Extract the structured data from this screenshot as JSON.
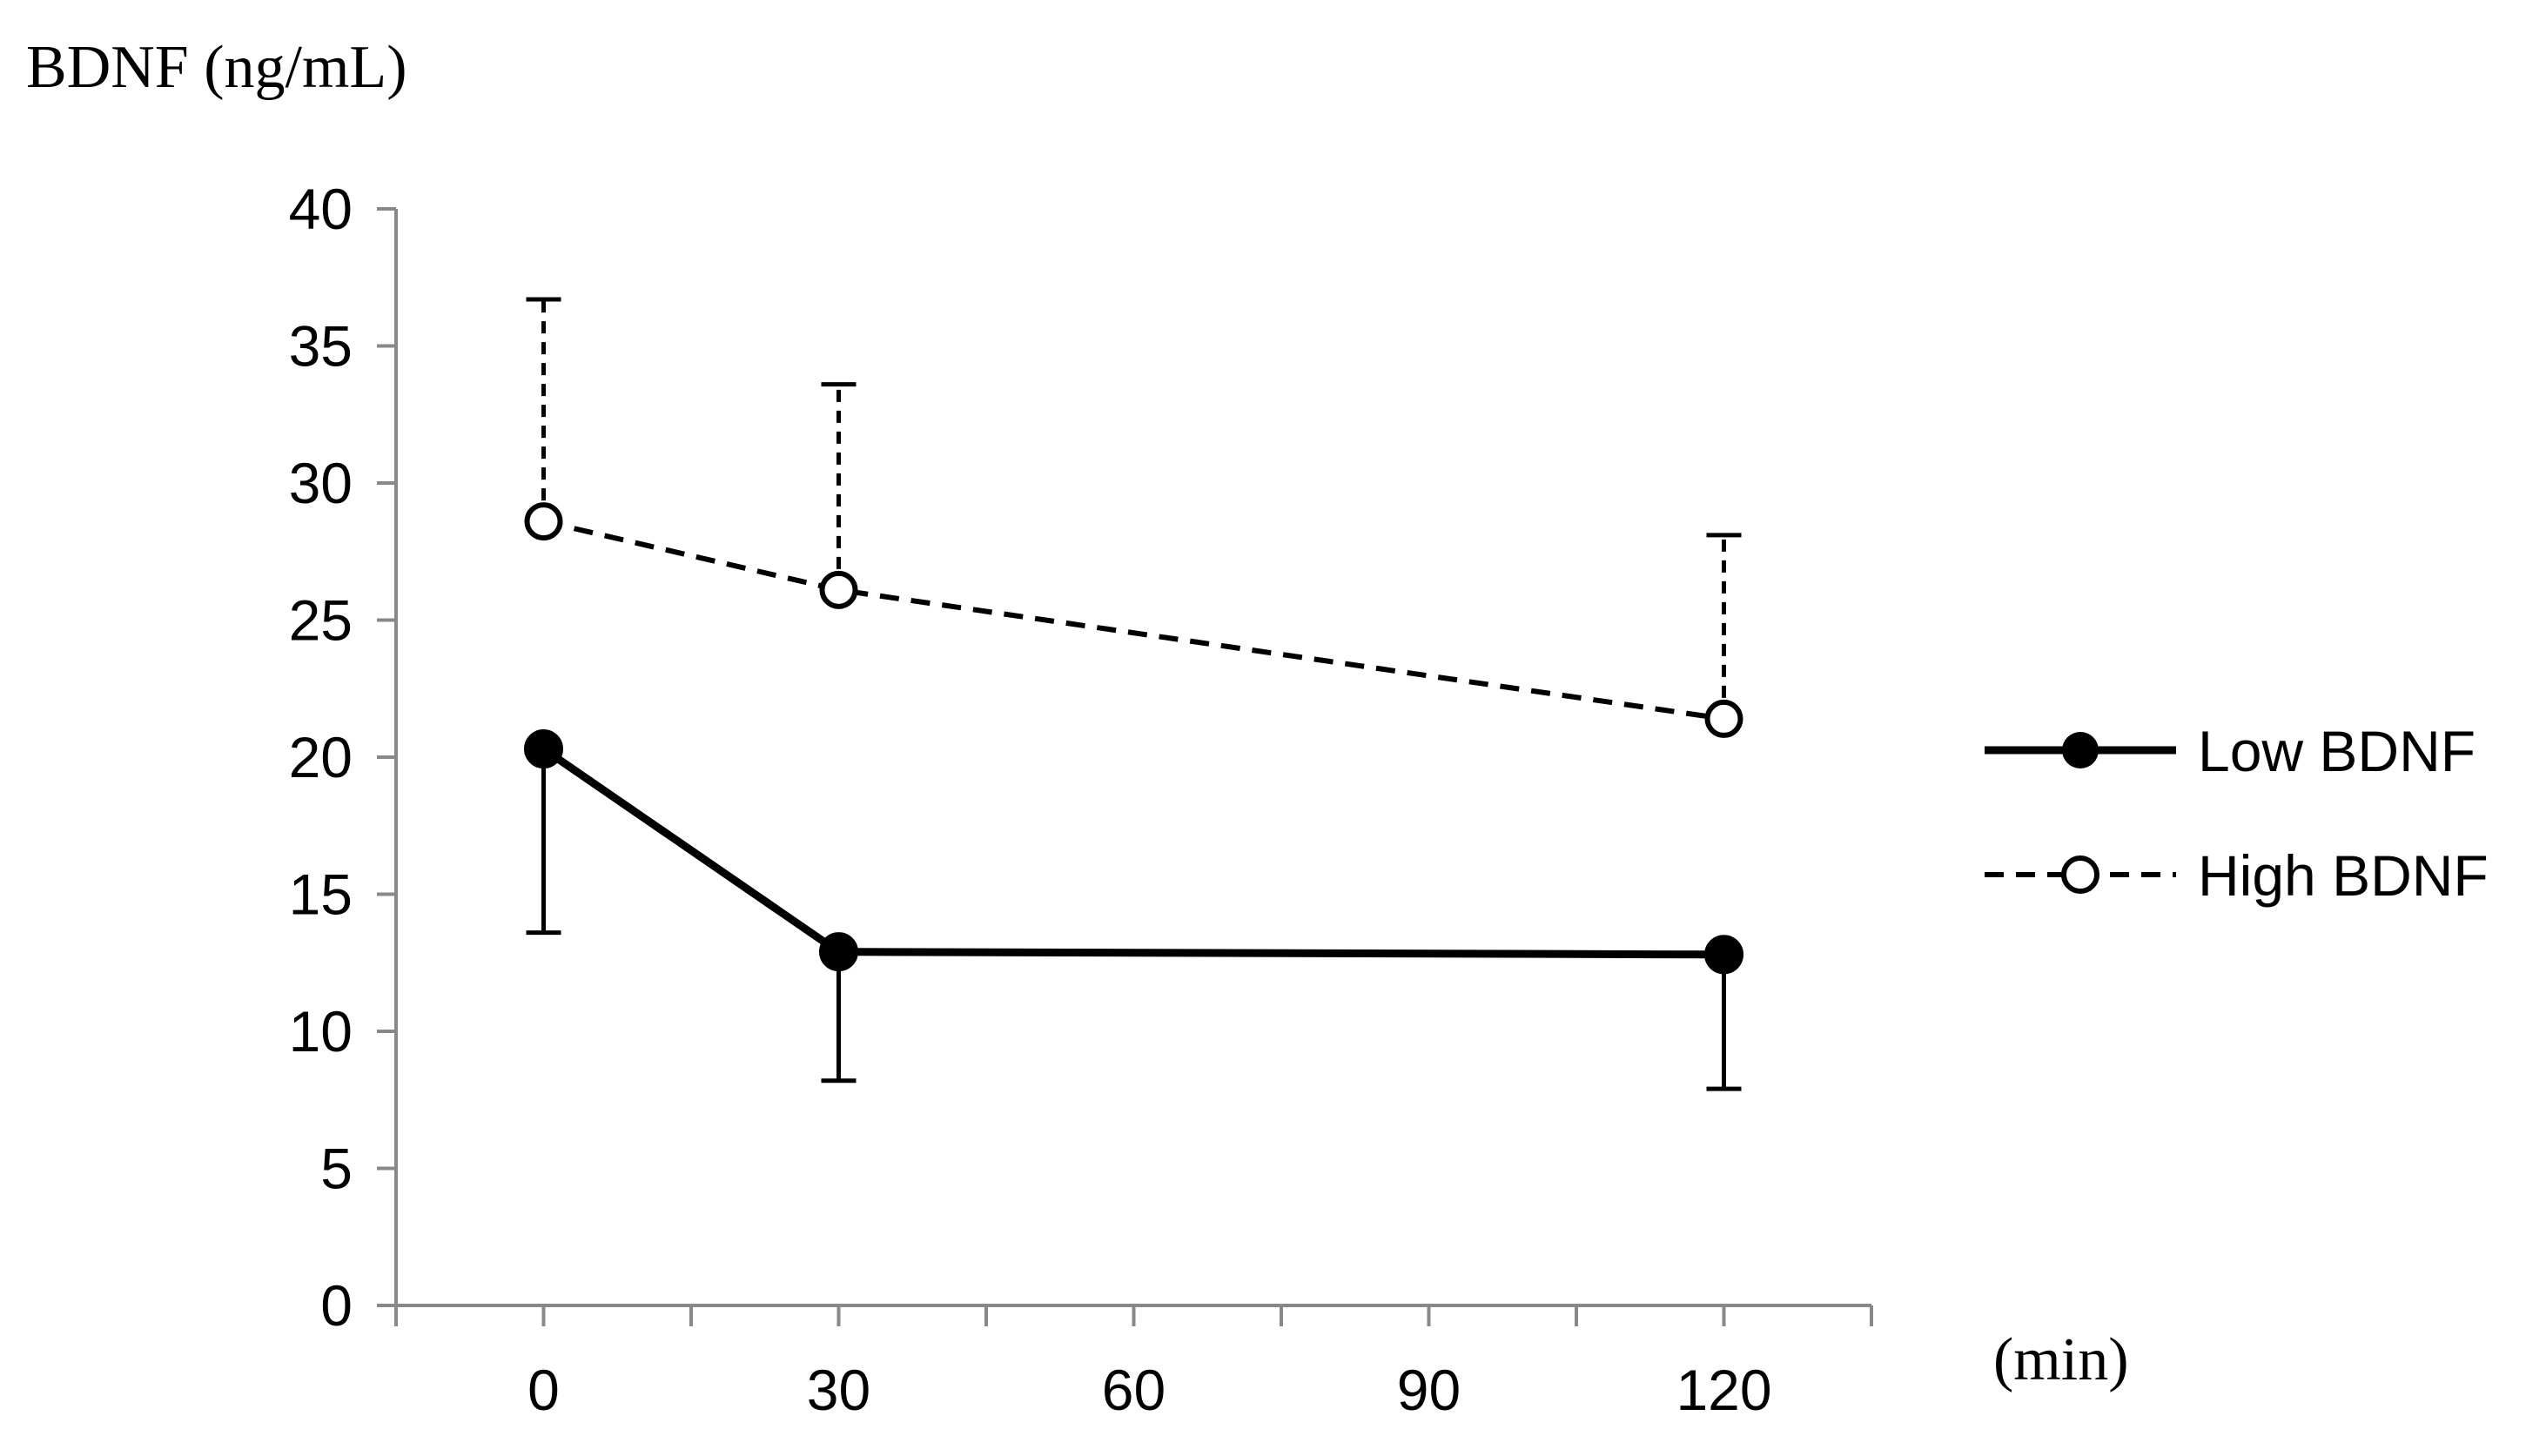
{
  "chart_data": {
    "type": "line",
    "title": "",
    "ylabel": "BDNF (ng/mL)",
    "xlabel": "(min)",
    "x": [
      0,
      30,
      120
    ],
    "xlim": [
      -15,
      135
    ],
    "xticks": [
      0,
      30,
      60,
      90,
      120
    ],
    "ylim": [
      0,
      40
    ],
    "yticks": [
      0,
      5,
      10,
      15,
      20,
      25,
      30,
      35,
      40
    ],
    "grid": false,
    "legend_position": "right",
    "series": [
      {
        "name": "Low BDNF",
        "values": [
          20.3,
          12.9,
          12.8
        ],
        "error_lower": [
          6.7,
          4.7,
          4.9
        ],
        "error_direction": "down",
        "line_style": "solid",
        "marker": "filled-circle",
        "color": "#000000"
      },
      {
        "name": "High BDNF",
        "values": [
          28.6,
          26.1,
          21.4
        ],
        "error_upper": [
          8.1,
          7.5,
          6.7
        ],
        "error_direction": "up",
        "line_style": "dashed",
        "marker": "open-circle",
        "color": "#000000"
      }
    ]
  }
}
